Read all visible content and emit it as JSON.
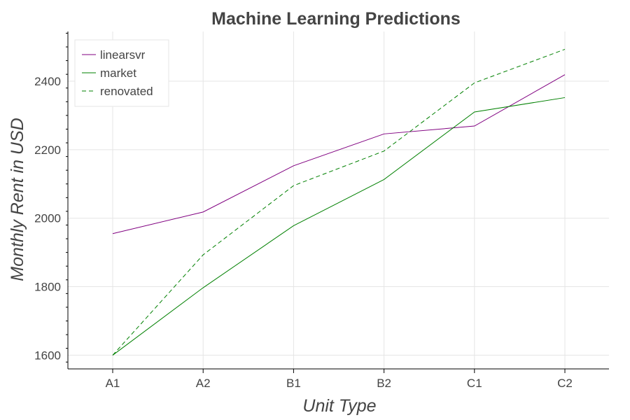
{
  "chart_data": {
    "type": "line",
    "title": "Machine Learning Predictions",
    "xlabel": "Unit Type",
    "ylabel": "Monthly Rent in USD",
    "categories": [
      "A1",
      "A2",
      "B1",
      "B2",
      "C1",
      "C2"
    ],
    "ylim": [
      1560,
      2545
    ],
    "yticks": [
      1600,
      1800,
      2000,
      2200,
      2400
    ],
    "grid": true,
    "legend_position": "top-left",
    "series": [
      {
        "name": "linearsvr",
        "values": [
          1955,
          2018,
          2153,
          2246,
          2269,
          2419
        ],
        "color": "#800080",
        "dash": "solid"
      },
      {
        "name": "market",
        "values": [
          1600,
          1797,
          1978,
          2113,
          2310,
          2352
        ],
        "color": "#008000",
        "dash": "solid"
      },
      {
        "name": "renovated",
        "values": [
          1600,
          1893,
          2095,
          2196,
          2395,
          2493
        ],
        "color": "#008000",
        "dash": "dashed"
      }
    ]
  }
}
